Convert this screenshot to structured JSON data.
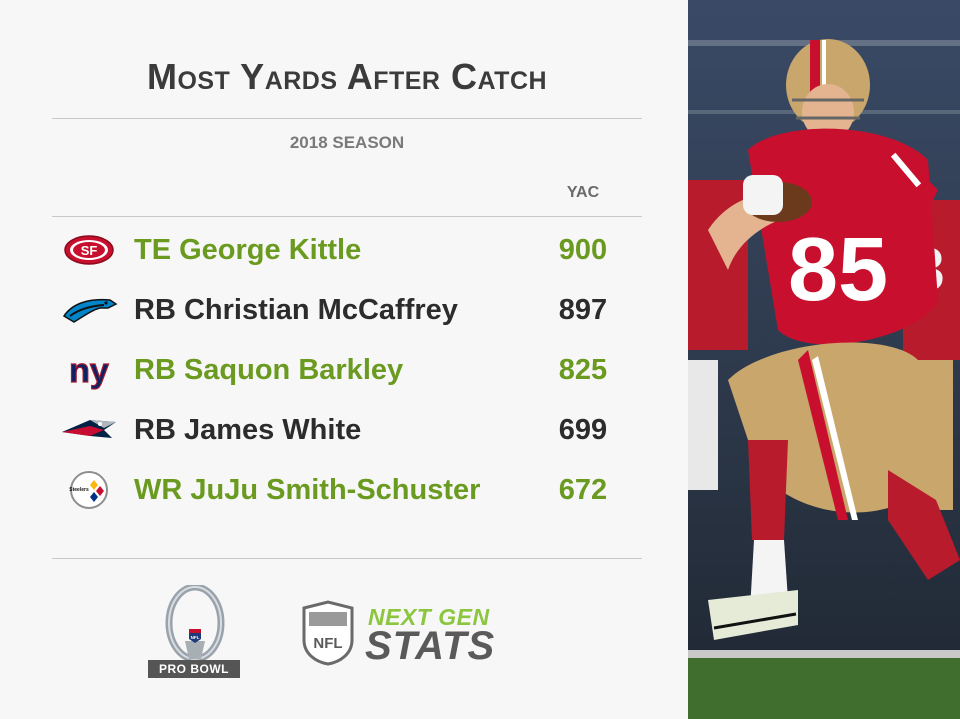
{
  "header": {
    "title": "Most Yards After Catch",
    "subtitle": "2018 SEASON",
    "column_label": "YAC"
  },
  "rows": [
    {
      "team_logo": "49ers-logo",
      "name": "TE George Kittle",
      "yac": "900",
      "highlight": true
    },
    {
      "team_logo": "panthers-logo",
      "name": "RB Christian McCaffrey",
      "yac": "897",
      "highlight": false
    },
    {
      "team_logo": "giants-logo",
      "name": "RB Saquon Barkley",
      "yac": "825",
      "highlight": true
    },
    {
      "team_logo": "patriots-logo",
      "name": "RB James White",
      "yac": "699",
      "highlight": false
    },
    {
      "team_logo": "steelers-logo",
      "name": "WR JuJu Smith-Schuster",
      "yac": "672",
      "highlight": true
    }
  ],
  "logos": {
    "sf_text": "SF",
    "ny_text": "ny",
    "nfl_text": "NFL",
    "steelers_text": "Steelers"
  },
  "footer": {
    "probowl_label": "PRO BOWL",
    "ngs_top": "NEXT GEN",
    "ngs_bottom": "STATS"
  },
  "photo": {
    "jersey_number": "85",
    "bg_jersey_number": "3"
  },
  "colors": {
    "highlight": "#6a9a1f",
    "text": "#2c2c2c",
    "niners_red": "#c8102e",
    "niners_gold": "#c9a66b"
  }
}
